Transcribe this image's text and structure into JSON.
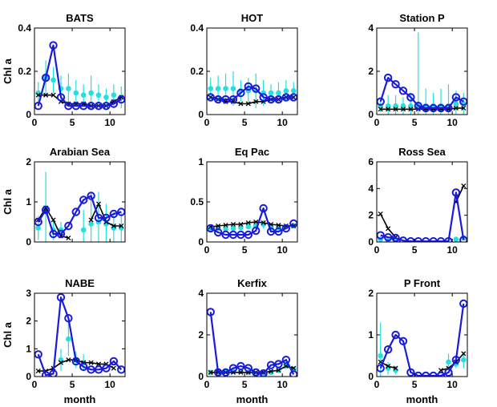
{
  "colors": {
    "model": "#1a1adb",
    "observed": "#22e0e0",
    "other": "#000000"
  },
  "axis_labels": {
    "y": "Chl a",
    "x": "month"
  },
  "chart_data": [
    {
      "type": "line",
      "title": "BATS",
      "xlim": [
        0,
        12
      ],
      "ylim": [
        0,
        0.4
      ],
      "xticks": [
        "0",
        "5",
        "10"
      ],
      "yticks": [
        "0",
        "0.2",
        "0.4"
      ],
      "x": [
        0.5,
        1.5,
        2.5,
        3.5,
        4.5,
        5.5,
        6.5,
        7.5,
        8.5,
        9.5,
        10.5,
        11.5
      ],
      "series": [
        {
          "role": "model",
          "values": [
            0.04,
            0.17,
            0.32,
            0.08,
            0.04,
            0.04,
            0.04,
            0.04,
            0.04,
            0.04,
            0.05,
            0.07
          ]
        },
        {
          "role": "other",
          "values": [
            0.09,
            0.09,
            0.09,
            0.06,
            0.05,
            0.05,
            0.05,
            0.04,
            0.04,
            0.04,
            0.06,
            0.08
          ]
        },
        {
          "role": "observed",
          "values": [
            0.1,
            0.17,
            0.16,
            0.12,
            0.12,
            0.1,
            0.09,
            0.1,
            0.09,
            0.08,
            0.09,
            0.08
          ],
          "err": [
            0.05,
            0.08,
            0.06,
            0.06,
            0.07,
            0.06,
            0.05,
            0.08,
            0.05,
            0.04,
            0.05,
            0.05
          ]
        }
      ]
    },
    {
      "type": "line",
      "title": "HOT",
      "xlim": [
        0,
        12
      ],
      "ylim": [
        0,
        0.4
      ],
      "xticks": [
        "0",
        "5",
        "10"
      ],
      "yticks": [
        "0",
        "0.2",
        "0.4"
      ],
      "x": [
        0.5,
        1.5,
        2.5,
        3.5,
        4.5,
        5.5,
        6.5,
        7.5,
        8.5,
        9.5,
        10.5,
        11.5
      ],
      "series": [
        {
          "role": "model",
          "values": [
            0.08,
            0.07,
            0.07,
            0.07,
            0.1,
            0.13,
            0.12,
            0.08,
            0.07,
            0.07,
            0.08,
            0.08
          ]
        },
        {
          "role": "other",
          "values": [
            0.08,
            0.07,
            0.06,
            0.06,
            0.05,
            0.05,
            0.06,
            0.06,
            0.07,
            0.07,
            0.08,
            0.08
          ]
        },
        {
          "role": "observed",
          "values": [
            0.12,
            0.12,
            0.12,
            0.12,
            0.11,
            0.11,
            0.11,
            0.1,
            0.1,
            0.1,
            0.11,
            0.11
          ],
          "err": [
            0.05,
            0.06,
            0.07,
            0.08,
            0.05,
            0.06,
            0.08,
            0.06,
            0.04,
            0.05,
            0.05,
            0.04
          ]
        }
      ]
    },
    {
      "type": "line",
      "title": "Station P",
      "xlim": [
        0,
        12
      ],
      "ylim": [
        0,
        4
      ],
      "xticks": [
        "0",
        "5",
        "10"
      ],
      "yticks": [
        "0",
        "2",
        "4"
      ],
      "x": [
        0.5,
        1.5,
        2.5,
        3.5,
        4.5,
        5.5,
        6.5,
        7.5,
        8.5,
        9.5,
        10.5,
        11.5
      ],
      "series": [
        {
          "role": "model",
          "values": [
            0.6,
            1.7,
            1.4,
            1.1,
            0.8,
            0.4,
            0.3,
            0.3,
            0.3,
            0.3,
            0.8,
            0.6
          ]
        },
        {
          "role": "other",
          "values": [
            0.25,
            0.25,
            0.25,
            0.25,
            0.25,
            0.25,
            0.25,
            0.25,
            0.25,
            0.25,
            0.3,
            0.3
          ]
        },
        {
          "role": "observed",
          "values": [
            0.4,
            0.4,
            0.4,
            0.4,
            0.4,
            0.4,
            0.4,
            0.4,
            0.4,
            0.4,
            0.5,
            0.5
          ],
          "err": [
            0.3,
            0.5,
            0.5,
            0.4,
            0.6,
            3.4,
            0.8,
            0.6,
            0.8,
            1.0,
            0.6,
            0.5
          ]
        }
      ]
    },
    {
      "type": "line",
      "title": "Arabian Sea",
      "xlim": [
        0,
        12
      ],
      "ylim": [
        0,
        2
      ],
      "xticks": [],
      "yticks": [
        "0",
        "1",
        "2"
      ],
      "x": [
        0.5,
        1.5,
        2.5,
        3.5,
        4.5,
        5.5,
        6.5,
        7.5,
        8.5,
        9.5,
        10.5,
        11.5
      ],
      "series": [
        {
          "role": "model",
          "values": [
            0.5,
            0.8,
            0.2,
            0.2,
            0.4,
            0.75,
            1.05,
            1.15,
            0.6,
            0.6,
            0.7,
            0.75
          ]
        },
        {
          "role": "other",
          "values": [
            0.55,
            0.85,
            0.55,
            0.15,
            0.1,
            null,
            null,
            0.55,
            0.95,
            0.5,
            0.4,
            0.4
          ]
        },
        {
          "role": "observed",
          "values": [
            0.35,
            0.85,
            0.3,
            0.3,
            null,
            null,
            0.3,
            0.45,
            0.5,
            0.45,
            0.35,
            0.35
          ],
          "err": [
            0.3,
            0.9,
            0.25,
            0.2,
            null,
            null,
            0.5,
            0.8,
            0.75,
            0.5,
            0.4,
            0.4
          ]
        }
      ]
    },
    {
      "type": "line",
      "title": "Eq Pac",
      "xlim": [
        0,
        12
      ],
      "ylim": [
        0,
        1
      ],
      "xticks": [
        "0",
        "5",
        "10"
      ],
      "yticks": [
        "0",
        "0.5",
        "1"
      ],
      "x": [
        0.5,
        1.5,
        2.5,
        3.5,
        4.5,
        5.5,
        6.5,
        7.5,
        8.5,
        9.5,
        10.5,
        11.5
      ],
      "series": [
        {
          "role": "model",
          "values": [
            0.17,
            0.12,
            0.09,
            0.09,
            0.09,
            0.09,
            0.14,
            0.42,
            0.13,
            0.13,
            0.17,
            0.23
          ]
        },
        {
          "role": "other",
          "values": [
            0.19,
            0.2,
            0.21,
            0.22,
            0.22,
            0.24,
            0.25,
            0.24,
            0.22,
            0.21,
            0.2,
            0.2
          ]
        },
        {
          "role": "observed",
          "values": [
            0.16,
            0.17,
            0.16,
            0.17,
            0.18,
            0.19,
            0.2,
            0.22,
            0.18,
            0.18,
            0.19,
            0.2
          ],
          "err": [
            0.02,
            0.02,
            0.02,
            0.02,
            0.02,
            0.02,
            0.03,
            0.05,
            0.03,
            0.02,
            0.02,
            0.02
          ]
        }
      ]
    },
    {
      "type": "line",
      "title": "Ross Sea",
      "xlim": [
        0,
        12
      ],
      "ylim": [
        0,
        6
      ],
      "xticks": [
        "0",
        "5",
        "10"
      ],
      "yticks": [
        "0",
        "2",
        "4",
        "6"
      ],
      "x": [
        0.5,
        1.5,
        2.5,
        3.5,
        4.5,
        5.5,
        6.5,
        7.5,
        8.5,
        9.5,
        10.5,
        11.5
      ],
      "series": [
        {
          "role": "model",
          "values": [
            0.5,
            0.35,
            0.3,
            0.1,
            0.05,
            0.05,
            0.05,
            0.05,
            0.05,
            0.05,
            3.7,
            0.15
          ]
        },
        {
          "role": "other",
          "values": [
            2.1,
            1.0,
            0.35,
            null,
            null,
            null,
            null,
            null,
            null,
            null,
            3.0,
            4.2
          ]
        },
        {
          "role": "observed",
          "values": [
            0.2,
            0.1,
            0.1,
            null,
            null,
            null,
            null,
            null,
            null,
            null,
            0.2,
            0.3
          ],
          "err": [
            0.05,
            0.05,
            0.05,
            null,
            null,
            null,
            null,
            null,
            null,
            null,
            0.1,
            0.1
          ]
        }
      ]
    },
    {
      "type": "line",
      "title": "NABE",
      "xlim": [
        0,
        12
      ],
      "ylim": [
        0,
        3
      ],
      "xticks": [
        "0",
        "5",
        "10"
      ],
      "yticks": [
        "0",
        "1",
        "2",
        "3"
      ],
      "x": [
        0.5,
        1.5,
        2.5,
        3.5,
        4.5,
        5.5,
        6.5,
        7.5,
        8.5,
        9.5,
        10.5,
        11.5
      ],
      "series": [
        {
          "role": "model",
          "values": [
            0.8,
            0.05,
            0.1,
            2.85,
            2.1,
            0.55,
            0.35,
            0.25,
            0.25,
            0.3,
            0.55,
            0.25
          ]
        },
        {
          "role": "other",
          "values": [
            0.2,
            0.2,
            0.3,
            0.5,
            0.6,
            0.6,
            0.5,
            0.5,
            0.45,
            0.45,
            0.3,
            null
          ]
        },
        {
          "role": "observed",
          "values": [
            null,
            null,
            null,
            0.6,
            1.35,
            0.6,
            0.5,
            null,
            null,
            null,
            null,
            null
          ],
          "err": [
            null,
            null,
            null,
            0.4,
            0.6,
            0.3,
            0.3,
            null,
            null,
            null,
            null,
            null
          ]
        }
      ]
    },
    {
      "type": "line",
      "title": "Kerfix",
      "xlim": [
        0,
        12
      ],
      "ylim": [
        0,
        4
      ],
      "xticks": [
        "0",
        "5",
        "10"
      ],
      "yticks": [
        "0",
        "2",
        "4"
      ],
      "x": [
        0.5,
        1.5,
        2.5,
        3.5,
        4.5,
        5.5,
        6.5,
        7.5,
        8.5,
        9.5,
        10.5,
        11.5
      ],
      "series": [
        {
          "role": "model",
          "values": [
            3.1,
            0.2,
            0.2,
            0.4,
            0.5,
            0.4,
            0.2,
            0.15,
            0.55,
            0.6,
            0.8,
            0.1
          ]
        },
        {
          "role": "other",
          "values": [
            0.2,
            0.2,
            0.2,
            0.2,
            0.2,
            0.2,
            0.2,
            0.2,
            0.25,
            0.3,
            0.5,
            0.4
          ]
        },
        {
          "role": "observed",
          "values": [
            0.2,
            0.2,
            0.25,
            0.25,
            0.25,
            0.2,
            0.15,
            0.15,
            0.2,
            0.3,
            0.55,
            0.35
          ],
          "err": [
            0.05,
            0.05,
            0.05,
            0.05,
            0.05,
            0.05,
            0.05,
            0.05,
            0.05,
            0.1,
            0.2,
            0.1
          ]
        }
      ]
    },
    {
      "type": "line",
      "title": "P Front",
      "xlim": [
        0,
        12
      ],
      "ylim": [
        0,
        2
      ],
      "xticks": [
        "0",
        "5",
        "10"
      ],
      "yticks": [
        "0",
        "1",
        "2"
      ],
      "x": [
        0.5,
        1.5,
        2.5,
        3.5,
        4.5,
        5.5,
        6.5,
        7.5,
        8.5,
        9.5,
        10.5,
        11.5
      ],
      "series": [
        {
          "role": "model",
          "values": [
            0.2,
            0.65,
            1.0,
            0.85,
            0.1,
            0.02,
            0.02,
            0.02,
            0.02,
            0.1,
            0.4,
            1.75
          ]
        },
        {
          "role": "other",
          "values": [
            0.35,
            0.25,
            0.2,
            null,
            null,
            null,
            null,
            null,
            0.15,
            0.2,
            0.35,
            0.55
          ]
        },
        {
          "role": "observed",
          "values": [
            0.5,
            0.2,
            0.15,
            null,
            null,
            null,
            null,
            null,
            null,
            0.35,
            0.3,
            0.4
          ],
          "err": [
            0.8,
            0.15,
            0.1,
            null,
            null,
            null,
            null,
            null,
            null,
            0.2,
            0.1,
            0.2
          ]
        }
      ]
    }
  ]
}
